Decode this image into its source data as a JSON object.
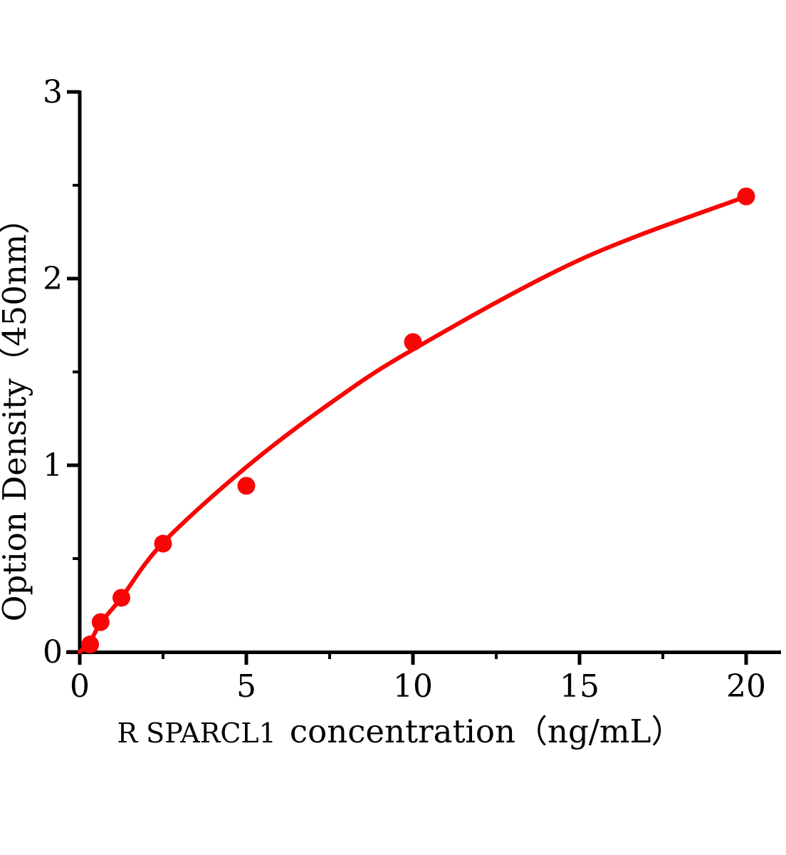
{
  "chart_data": {
    "type": "scatter",
    "title": "",
    "xlabel_prefix": "R SPARCL1",
    "xlabel_rest": "concentration（ng/mL）",
    "ylabel": "Option Density（450nm）",
    "xlim": [
      0,
      21.1
    ],
    "ylim": [
      0,
      3.01
    ],
    "x_ticks_major": [
      {
        "value": 0,
        "label": "0"
      },
      {
        "value": 5,
        "label": "5"
      },
      {
        "value": 10,
        "label": "10"
      },
      {
        "value": 15,
        "label": "15"
      },
      {
        "value": 20,
        "label": "20"
      }
    ],
    "x_ticks_minor": [
      2.5,
      7.5,
      12.5,
      17.5
    ],
    "y_ticks_major": [
      {
        "value": 0,
        "label": "0"
      },
      {
        "value": 1,
        "label": "1"
      },
      {
        "value": 2,
        "label": "2"
      },
      {
        "value": 3,
        "label": "3"
      }
    ],
    "y_ticks_minor": [
      0.5,
      1.5,
      2.5
    ],
    "grid": false,
    "legend": "none",
    "series": [
      {
        "name": "standard-points",
        "type": "scatter",
        "x": [
          0.3125,
          0.625,
          1.25,
          2.5,
          5,
          10,
          20
        ],
        "y": [
          0.04,
          0.16,
          0.29,
          0.58,
          0.89,
          1.66,
          2.44
        ]
      },
      {
        "name": "fit-curve",
        "type": "line",
        "x": [
          0,
          0.3125,
          0.625,
          1.25,
          2.5,
          5,
          7.5,
          10,
          15,
          20
        ],
        "y": [
          0,
          0.055,
          0.155,
          0.29,
          0.585,
          0.99,
          1.33,
          1.62,
          2.1,
          2.44
        ]
      }
    ],
    "colors": {
      "point": "#f80606",
      "curve": "#f80606",
      "axis": "#000000",
      "background": "#ffffff"
    }
  }
}
